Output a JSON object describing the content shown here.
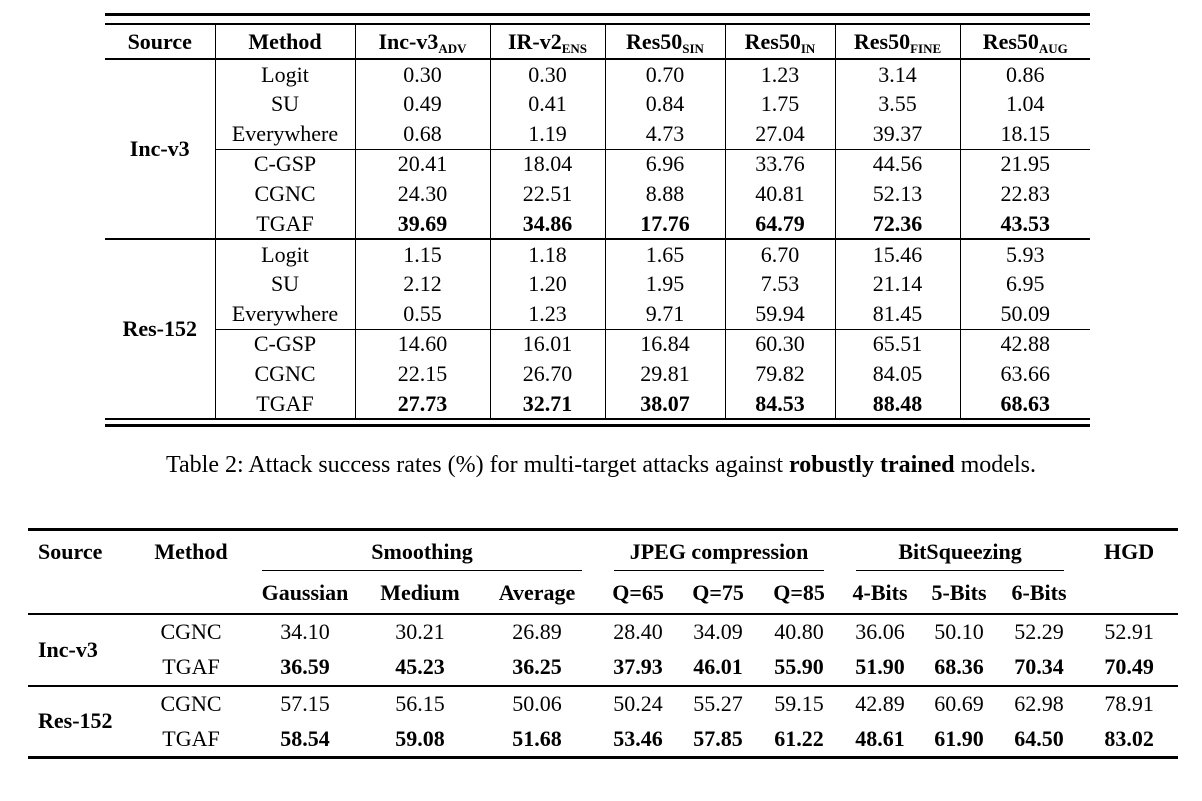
{
  "colors": {
    "text": "#000000",
    "background": "#ffffff",
    "rule": "#000000"
  },
  "table1": {
    "headers": {
      "source": "Source",
      "method": "Method",
      "models": [
        {
          "base": "Inc-v3",
          "sub": "ADV"
        },
        {
          "base": "IR-v2",
          "sub": "ENS"
        },
        {
          "base": "Res50",
          "sub": "SIN"
        },
        {
          "base": "Res50",
          "sub": "IN"
        },
        {
          "base": "Res50",
          "sub": "FINE"
        },
        {
          "base": "Res50",
          "sub": "AUG"
        }
      ]
    },
    "groups": [
      {
        "source": "Inc-v3",
        "rows": [
          {
            "method": "Logit",
            "bold": false,
            "rule_above": false,
            "values": [
              "0.30",
              "0.30",
              "0.70",
              "1.23",
              "3.14",
              "0.86"
            ]
          },
          {
            "method": "SU",
            "bold": false,
            "rule_above": false,
            "values": [
              "0.49",
              "0.41",
              "0.84",
              "1.75",
              "3.55",
              "1.04"
            ]
          },
          {
            "method": "Everywhere",
            "bold": false,
            "rule_above": false,
            "values": [
              "0.68",
              "1.19",
              "4.73",
              "27.04",
              "39.37",
              "18.15"
            ]
          },
          {
            "method": "C-GSP",
            "bold": false,
            "rule_above": true,
            "values": [
              "20.41",
              "18.04",
              "6.96",
              "33.76",
              "44.56",
              "21.95"
            ]
          },
          {
            "method": "CGNC",
            "bold": false,
            "rule_above": false,
            "values": [
              "24.30",
              "22.51",
              "8.88",
              "40.81",
              "52.13",
              "22.83"
            ]
          },
          {
            "method": "TGAF",
            "bold": true,
            "rule_above": false,
            "values": [
              "39.69",
              "34.86",
              "17.76",
              "64.79",
              "72.36",
              "43.53"
            ]
          }
        ]
      },
      {
        "source": "Res-152",
        "rows": [
          {
            "method": "Logit",
            "bold": false,
            "rule_above": false,
            "values": [
              "1.15",
              "1.18",
              "1.65",
              "6.70",
              "15.46",
              "5.93"
            ]
          },
          {
            "method": "SU",
            "bold": false,
            "rule_above": false,
            "values": [
              "2.12",
              "1.20",
              "1.95",
              "7.53",
              "21.14",
              "6.95"
            ]
          },
          {
            "method": "Everywhere",
            "bold": false,
            "rule_above": false,
            "values": [
              "0.55",
              "1.23",
              "9.71",
              "59.94",
              "81.45",
              "50.09"
            ]
          },
          {
            "method": "C-GSP",
            "bold": false,
            "rule_above": true,
            "values": [
              "14.60",
              "16.01",
              "16.84",
              "60.30",
              "65.51",
              "42.88"
            ]
          },
          {
            "method": "CGNC",
            "bold": false,
            "rule_above": false,
            "values": [
              "22.15",
              "26.70",
              "29.81",
              "79.82",
              "84.05",
              "63.66"
            ]
          },
          {
            "method": "TGAF",
            "bold": true,
            "rule_above": false,
            "values": [
              "27.73",
              "32.71",
              "38.07",
              "84.53",
              "88.48",
              "68.63"
            ]
          }
        ]
      }
    ]
  },
  "caption": {
    "prefix": "Table 2: Attack success rates (%) for multi-target attacks against ",
    "bold": "robustly trained",
    "suffix": " models."
  },
  "table2": {
    "headers": {
      "source": "Source",
      "method": "Method",
      "groups": [
        {
          "label": "Smoothing",
          "cols": [
            "Gaussian",
            "Medium",
            "Average"
          ]
        },
        {
          "label": "JPEG compression",
          "cols": [
            "Q=65",
            "Q=75",
            "Q=85"
          ]
        },
        {
          "label": "BitSqueezing",
          "cols": [
            "4-Bits",
            "5-Bits",
            "6-Bits"
          ]
        }
      ],
      "hgd": "HGD"
    },
    "groups": [
      {
        "source": "Inc-v3",
        "rows": [
          {
            "method": "CGNC",
            "bold": false,
            "values": [
              "34.10",
              "30.21",
              "26.89",
              "28.40",
              "34.09",
              "40.80",
              "36.06",
              "50.10",
              "52.29",
              "52.91"
            ]
          },
          {
            "method": "TGAF",
            "bold": true,
            "values": [
              "36.59",
              "45.23",
              "36.25",
              "37.93",
              "46.01",
              "55.90",
              "51.90",
              "68.36",
              "70.34",
              "70.49"
            ]
          }
        ]
      },
      {
        "source": "Res-152",
        "rows": [
          {
            "method": "CGNC",
            "bold": false,
            "values": [
              "57.15",
              "56.15",
              "50.06",
              "50.24",
              "55.27",
              "59.15",
              "42.89",
              "60.69",
              "62.98",
              "78.91"
            ]
          },
          {
            "method": "TGAF",
            "bold": true,
            "values": [
              "58.54",
              "59.08",
              "51.68",
              "53.46",
              "57.85",
              "61.22",
              "48.61",
              "61.90",
              "64.50",
              "83.02"
            ]
          }
        ]
      }
    ]
  }
}
